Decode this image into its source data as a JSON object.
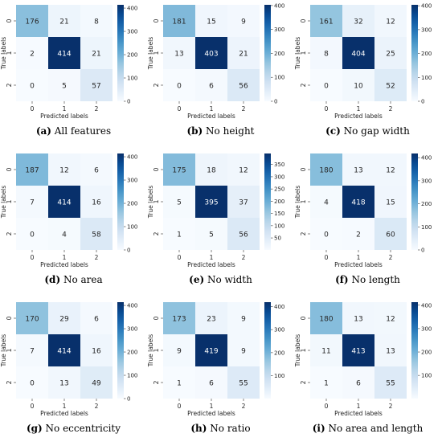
{
  "chart_data": [
    {
      "type": "heatmap",
      "caption_letter": "(a)",
      "caption_text": "All features",
      "xlabel": "Predicted labels",
      "ylabel": "True labels",
      "x_ticks": [
        "0",
        "1",
        "2"
      ],
      "y_ticks": [
        "0",
        "1",
        "2"
      ],
      "values": [
        [
          176,
          21,
          8
        ],
        [
          2,
          414,
          21
        ],
        [
          0,
          5,
          57
        ]
      ],
      "colorbar": {
        "min": 0,
        "max": 414,
        "ticks": [
          0,
          100,
          200,
          300,
          400
        ]
      }
    },
    {
      "type": "heatmap",
      "caption_letter": "(b)",
      "caption_text": "No height",
      "xlabel": "Predicted labels",
      "ylabel": "True labels",
      "x_ticks": [
        "0",
        "1",
        "2"
      ],
      "y_ticks": [
        "0",
        "1",
        "2"
      ],
      "values": [
        [
          181,
          15,
          9
        ],
        [
          13,
          403,
          21
        ],
        [
          0,
          6,
          56
        ]
      ],
      "colorbar": {
        "min": 0,
        "max": 403,
        "ticks": [
          0,
          100,
          200,
          300,
          400
        ]
      }
    },
    {
      "type": "heatmap",
      "caption_letter": "(c)",
      "caption_text": "No gap width",
      "xlabel": "Predicted labels",
      "ylabel": "True labels",
      "x_ticks": [
        "0",
        "1",
        "2"
      ],
      "y_ticks": [
        "0",
        "1",
        "2"
      ],
      "values": [
        [
          161,
          32,
          12
        ],
        [
          8,
          404,
          25
        ],
        [
          0,
          10,
          52
        ]
      ],
      "colorbar": {
        "min": 0,
        "max": 404,
        "ticks": [
          0,
          100,
          200,
          300,
          400
        ]
      }
    },
    {
      "type": "heatmap",
      "caption_letter": "(d)",
      "caption_text": "No area",
      "xlabel": "Predicted labels",
      "ylabel": "True labels",
      "x_ticks": [
        "0",
        "1",
        "2"
      ],
      "y_ticks": [
        "0",
        "1",
        "2"
      ],
      "values": [
        [
          187,
          12,
          6
        ],
        [
          7,
          414,
          16
        ],
        [
          0,
          4,
          58
        ]
      ],
      "colorbar": {
        "min": 0,
        "max": 414,
        "ticks": [
          0,
          100,
          200,
          300,
          400
        ]
      }
    },
    {
      "type": "heatmap",
      "caption_letter": "(e)",
      "caption_text": "No width",
      "xlabel": "Predicted labels",
      "ylabel": "True labels",
      "x_ticks": [
        "0",
        "1",
        "2"
      ],
      "y_ticks": [
        "0",
        "1",
        "2"
      ],
      "values": [
        [
          175,
          18,
          12
        ],
        [
          5,
          395,
          37
        ],
        [
          1,
          5,
          56
        ]
      ],
      "colorbar": {
        "min": 1,
        "max": 395,
        "ticks": [
          50,
          100,
          150,
          200,
          250,
          300,
          350
        ]
      }
    },
    {
      "type": "heatmap",
      "caption_letter": "(f)",
      "caption_text": "No length",
      "xlabel": "Predicted labels",
      "ylabel": "True labels",
      "x_ticks": [
        "0",
        "1",
        "2"
      ],
      "y_ticks": [
        "0",
        "1",
        "2"
      ],
      "values": [
        [
          180,
          13,
          12
        ],
        [
          4,
          418,
          15
        ],
        [
          0,
          2,
          60
        ]
      ],
      "colorbar": {
        "min": 0,
        "max": 418,
        "ticks": [
          0,
          100,
          200,
          300,
          400
        ]
      }
    },
    {
      "type": "heatmap",
      "caption_letter": "(g)",
      "caption_text": "No eccentricity",
      "xlabel": "Predicted labels",
      "ylabel": "True labels",
      "x_ticks": [
        "0",
        "1",
        "2"
      ],
      "y_ticks": [
        "0",
        "1",
        "2"
      ],
      "values": [
        [
          170,
          29,
          6
        ],
        [
          7,
          414,
          16
        ],
        [
          0,
          13,
          49
        ]
      ],
      "colorbar": {
        "min": 0,
        "max": 414,
        "ticks": [
          0,
          100,
          200,
          300,
          400
        ]
      }
    },
    {
      "type": "heatmap",
      "caption_letter": "(h)",
      "caption_text": "No ratio",
      "xlabel": "Predicted labels",
      "ylabel": "True labels",
      "x_ticks": [
        "0",
        "1",
        "2"
      ],
      "y_ticks": [
        "0",
        "1",
        "2"
      ],
      "values": [
        [
          173,
          23,
          9
        ],
        [
          9,
          419,
          9
        ],
        [
          1,
          6,
          55
        ]
      ],
      "colorbar": {
        "min": 1,
        "max": 419,
        "ticks": [
          100,
          200,
          300,
          400
        ]
      }
    },
    {
      "type": "heatmap",
      "caption_letter": "(i)",
      "caption_text": "No area and length",
      "xlabel": "Predicted labels",
      "ylabel": "True labels",
      "x_ticks": [
        "0",
        "1",
        "2"
      ],
      "y_ticks": [
        "0",
        "1",
        "2"
      ],
      "values": [
        [
          180,
          13,
          12
        ],
        [
          11,
          413,
          13
        ],
        [
          1,
          6,
          55
        ]
      ],
      "colorbar": {
        "min": 1,
        "max": 413,
        "ticks": [
          100,
          200,
          300,
          400
        ]
      }
    }
  ]
}
